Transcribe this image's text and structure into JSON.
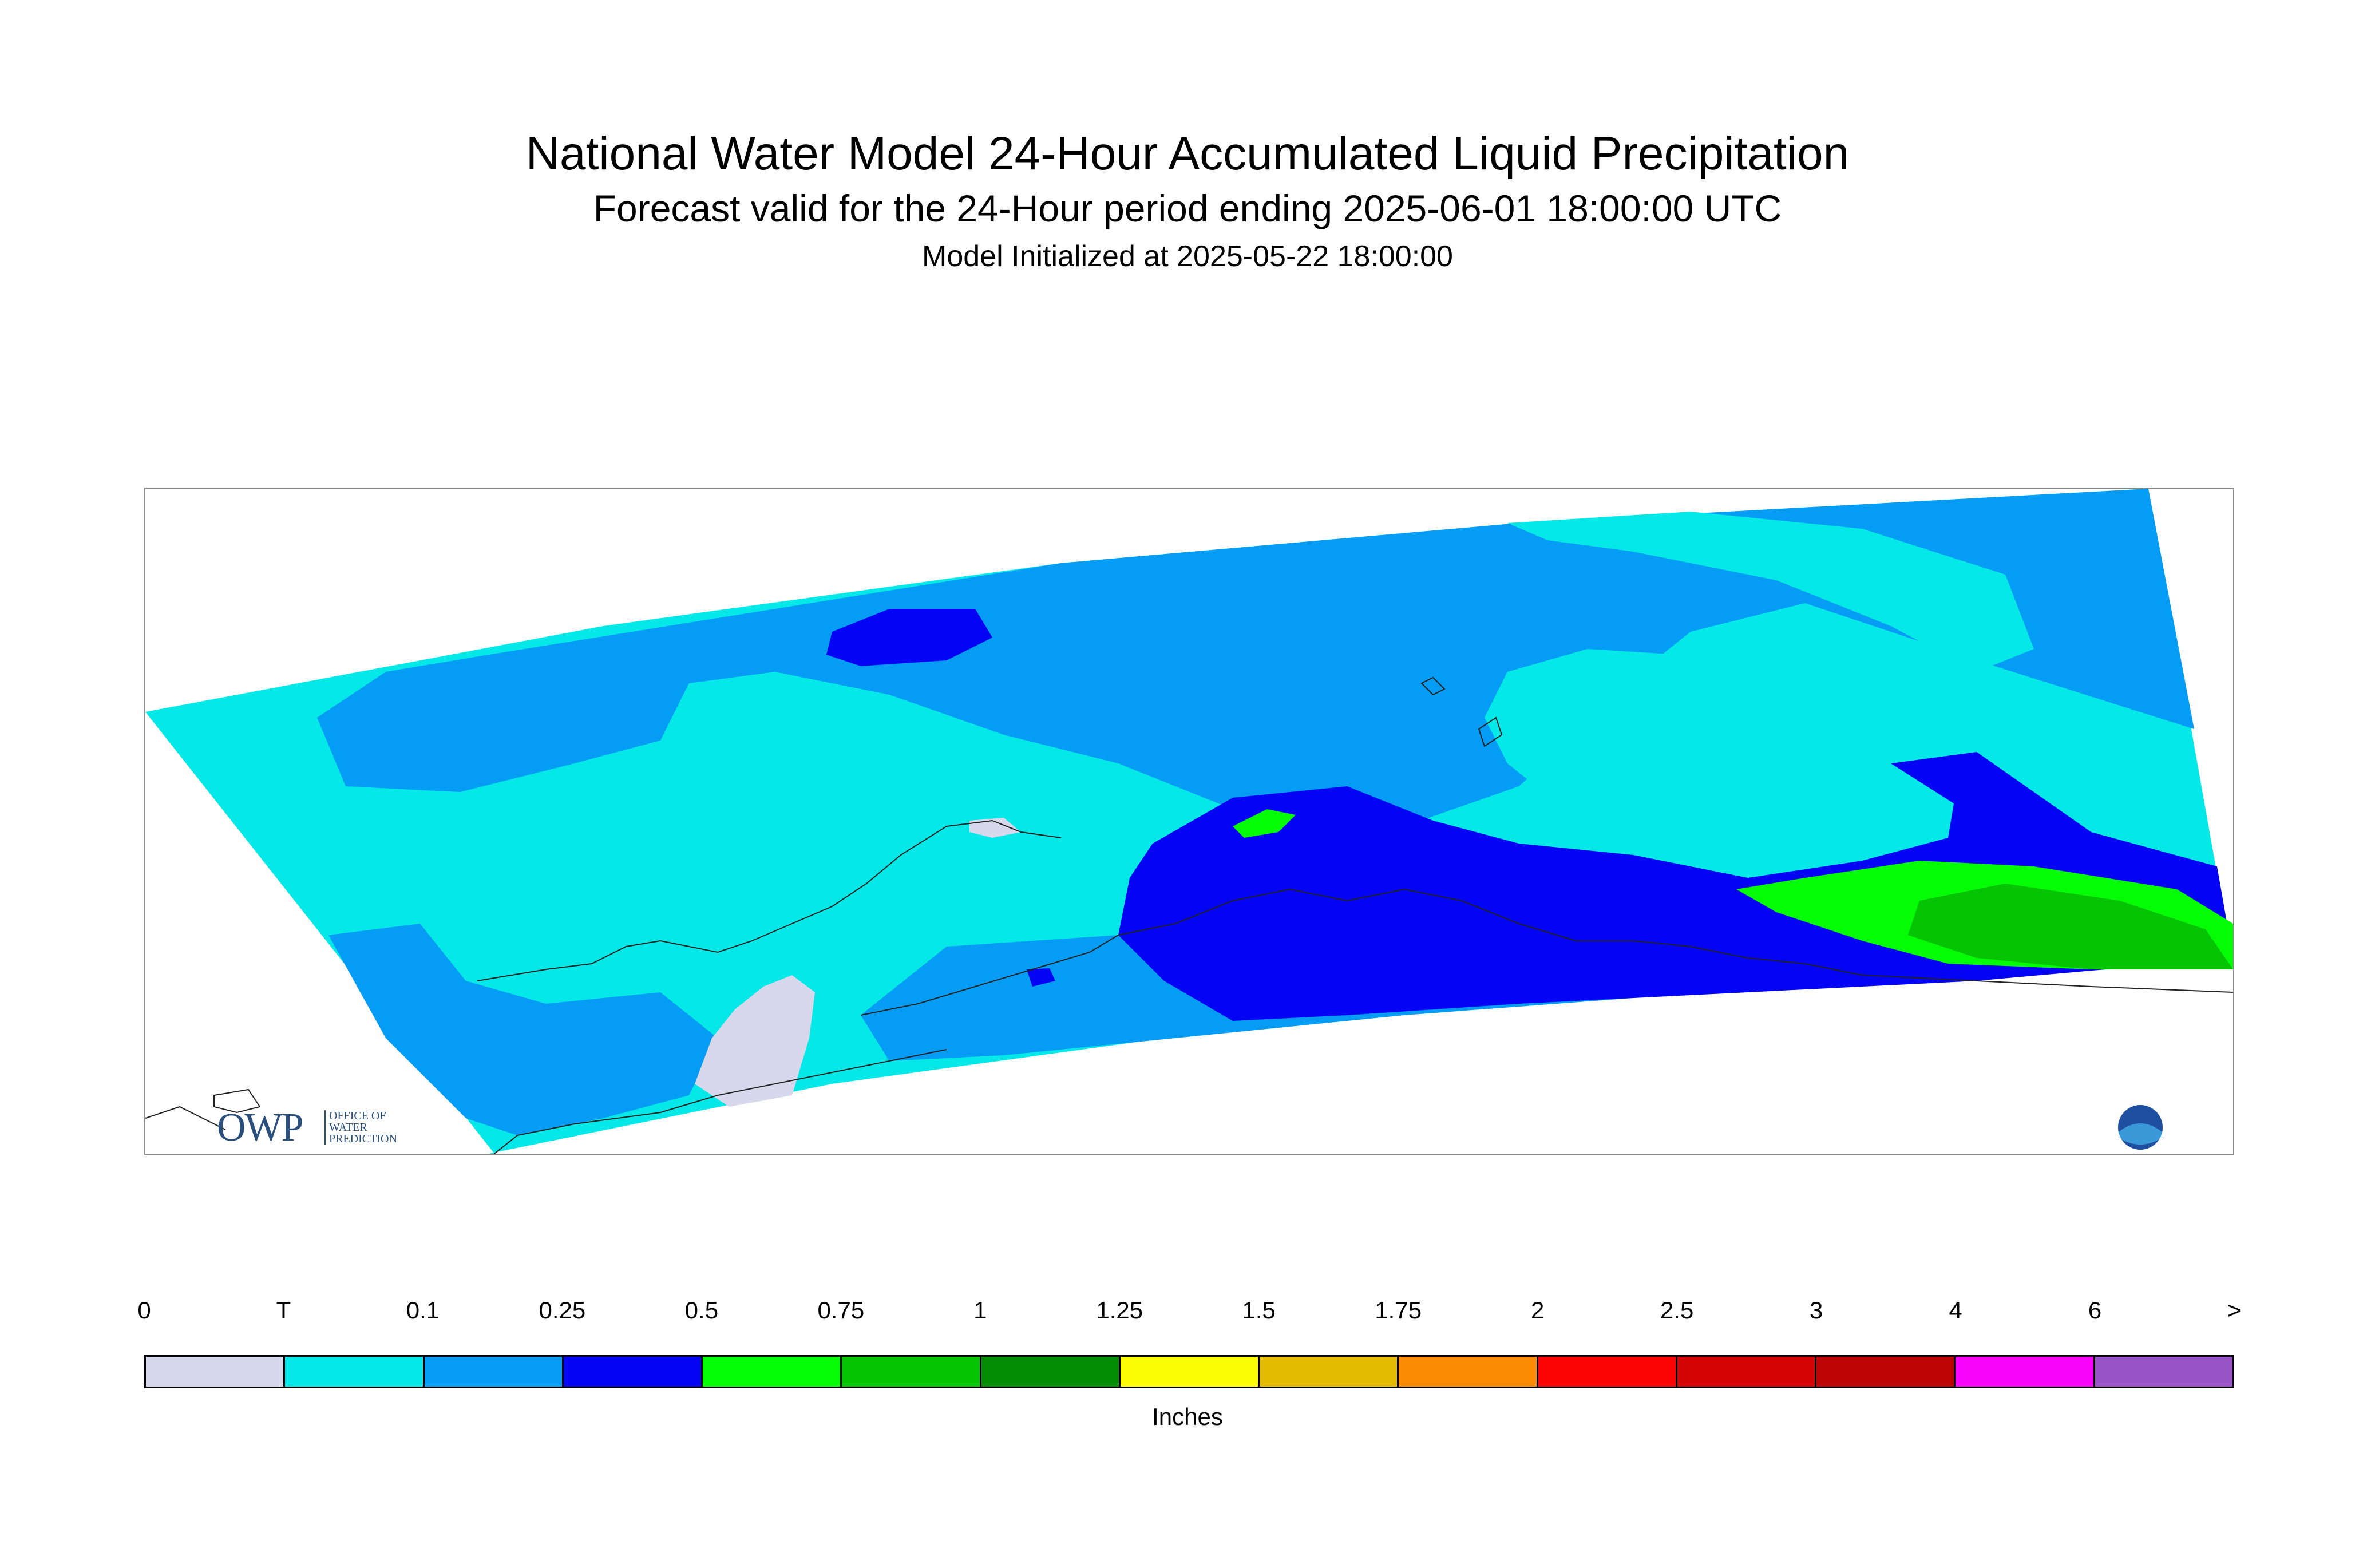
{
  "header": {
    "title": "National Water Model 24-Hour Accumulated Liquid Precipitation",
    "subtitle": "Forecast valid for the 24-Hour period ending 2025-06-01 18:00:00 UTC",
    "init": "Model Initialized at 2025-05-22 18:00:00"
  },
  "logos": {
    "owp_text": "OWP",
    "owp_small": "OFFICE OF WATER PREDICTION",
    "noaa_text": "NOAA"
  },
  "legend": {
    "ticks": [
      "0",
      "T",
      "0.1",
      "0.25",
      "0.5",
      "0.75",
      "1",
      "1.25",
      "1.5",
      "1.75",
      "2",
      "2.5",
      "3",
      "4",
      "6",
      ">"
    ],
    "colors": [
      "#d8d8ec",
      "#04e8e8",
      "#049cf4",
      "#0404f4",
      "#04fc04",
      "#04c404",
      "#048c04",
      "#fcfc04",
      "#e4bc04",
      "#fc8c04",
      "#fc0404",
      "#d40404",
      "#bc0404",
      "#f804fc",
      "#9854c4"
    ],
    "units": "Inches"
  },
  "map": {
    "background": "#ffffff",
    "coastline_color": "#222222"
  }
}
